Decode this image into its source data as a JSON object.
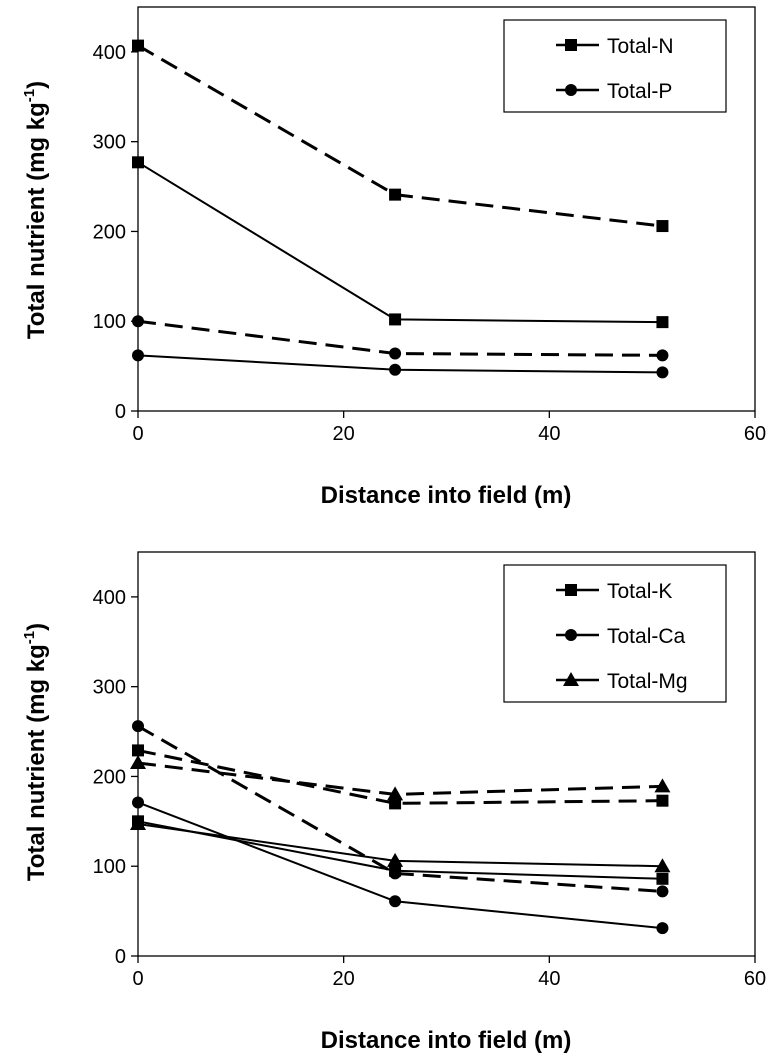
{
  "chart_data": [
    {
      "type": "line",
      "xlabel": "Distance into field (m)",
      "ylabel_main": "Total nutrient (mg kg",
      "ylabel_sup": "-1",
      "ylabel_end": ")",
      "xlim": [
        0,
        60
      ],
      "ylim": [
        0,
        450
      ],
      "xticks": [
        0,
        20,
        40,
        60
      ],
      "yticks": [
        0,
        100,
        200,
        300,
        400
      ],
      "xtick_labels": [
        "0",
        "20",
        "40",
        "60"
      ],
      "ytick_labels": [
        "0",
        "100",
        "200",
        "300",
        "400"
      ],
      "legend": {
        "position": "top-right",
        "entries": [
          {
            "label": "Total-N",
            "marker": "square"
          },
          {
            "label": "Total-P",
            "marker": "circle"
          }
        ]
      },
      "series": [
        {
          "name": "Total-N",
          "line": "dashed",
          "marker": "square",
          "x": [
            0,
            25,
            51
          ],
          "y": [
            407,
            241,
            206
          ]
        },
        {
          "name": "Total-N",
          "line": "solid",
          "marker": "square",
          "x": [
            0,
            25,
            51
          ],
          "y": [
            277,
            102,
            99
          ]
        },
        {
          "name": "Total-P",
          "line": "dashed",
          "marker": "circle",
          "x": [
            0,
            25,
            51
          ],
          "y": [
            100,
            64,
            62
          ]
        },
        {
          "name": "Total-P",
          "line": "solid",
          "marker": "circle",
          "x": [
            0,
            25,
            51
          ],
          "y": [
            62,
            46,
            43
          ]
        }
      ]
    },
    {
      "type": "line",
      "xlabel": "Distance into field (m)",
      "ylabel_main": "Total nutrient (mg kg",
      "ylabel_sup": "-1",
      "ylabel_end": ")",
      "xlim": [
        0,
        60
      ],
      "ylim": [
        0,
        450
      ],
      "xticks": [
        0,
        20,
        40,
        60
      ],
      "yticks": [
        0,
        100,
        200,
        300,
        400
      ],
      "xtick_labels": [
        "0",
        "20",
        "40",
        "60"
      ],
      "ytick_labels": [
        "0",
        "100",
        "200",
        "300",
        "400"
      ],
      "legend": {
        "position": "top-right",
        "entries": [
          {
            "label": "Total-K",
            "marker": "square"
          },
          {
            "label": "Total-Ca",
            "marker": "circle"
          },
          {
            "label": "Total-Mg",
            "marker": "triangle"
          }
        ]
      },
      "series": [
        {
          "name": "Total-K",
          "line": "dashed",
          "marker": "square",
          "x": [
            0,
            25,
            51
          ],
          "y": [
            229,
            170,
            173
          ]
        },
        {
          "name": "Total-K",
          "line": "solid",
          "marker": "square",
          "x": [
            0,
            25,
            51
          ],
          "y": [
            150,
            95,
            86
          ]
        },
        {
          "name": "Total-Ca",
          "line": "dashed",
          "marker": "circle",
          "x": [
            0,
            25,
            51
          ],
          "y": [
            256,
            92,
            72
          ]
        },
        {
          "name": "Total-Ca",
          "line": "solid",
          "marker": "circle",
          "x": [
            0,
            25,
            51
          ],
          "y": [
            171,
            61,
            31
          ]
        },
        {
          "name": "Total-Mg",
          "line": "dashed",
          "marker": "triangle",
          "x": [
            0,
            25,
            51
          ],
          "y": [
            215,
            180,
            189
          ]
        },
        {
          "name": "Total-Mg",
          "line": "solid",
          "marker": "triangle",
          "x": [
            0,
            25,
            51
          ],
          "y": [
            147,
            106,
            100
          ]
        }
      ]
    }
  ]
}
